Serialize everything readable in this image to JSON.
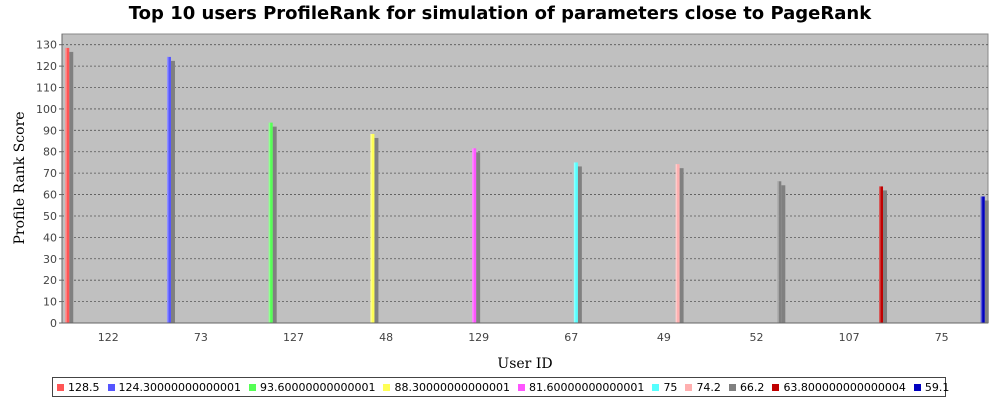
{
  "chart_data": {
    "type": "bar",
    "title": "Top 10 users ProfileRank for simulation of parameters close to PageRank",
    "xlabel": "User ID",
    "ylabel": "Profile Rank Score",
    "ylim": [
      0,
      135
    ],
    "yticks": [
      0,
      10,
      20,
      30,
      40,
      50,
      60,
      70,
      80,
      90,
      100,
      110,
      120,
      130
    ],
    "grid": true,
    "legend_position": "bottom",
    "categories": [
      "122",
      "73",
      "127",
      "48",
      "129",
      "67",
      "49",
      "52",
      "107",
      "75"
    ],
    "series": [
      {
        "name": "128.5",
        "color": "#ff5555",
        "values": [
          128.5,
          null,
          null,
          null,
          null,
          null,
          null,
          null,
          null,
          null
        ]
      },
      {
        "name": "124.30000000000001",
        "color": "#5555ff",
        "values": [
          null,
          124.3,
          null,
          null,
          null,
          null,
          null,
          null,
          null,
          null
        ]
      },
      {
        "name": "93.60000000000001",
        "color": "#55ff55",
        "values": [
          null,
          null,
          93.6,
          null,
          null,
          null,
          null,
          null,
          null,
          null
        ]
      },
      {
        "name": "88.30000000000001",
        "color": "#ffff55",
        "values": [
          null,
          null,
          null,
          88.3,
          null,
          null,
          null,
          null,
          null,
          null
        ]
      },
      {
        "name": "81.60000000000001",
        "color": "#ff55ff",
        "values": [
          null,
          null,
          null,
          null,
          81.6,
          null,
          null,
          null,
          null,
          null
        ]
      },
      {
        "name": "75",
        "color": "#55ffff",
        "values": [
          null,
          null,
          null,
          null,
          null,
          75,
          null,
          null,
          null,
          null
        ]
      },
      {
        "name": "74.2",
        "color": "#ffafaf",
        "values": [
          null,
          null,
          null,
          null,
          null,
          null,
          74.2,
          null,
          null,
          null
        ]
      },
      {
        "name": "66.2",
        "color": "#808080",
        "values": [
          null,
          null,
          null,
          null,
          null,
          null,
          null,
          66.2,
          null,
          null
        ]
      },
      {
        "name": "63.800000000000004",
        "color": "#c00000",
        "values": [
          null,
          null,
          null,
          null,
          null,
          null,
          null,
          null,
          63.8,
          null
        ]
      },
      {
        "name": "59.1",
        "color": "#0000c0",
        "values": [
          null,
          null,
          null,
          null,
          null,
          null,
          null,
          null,
          null,
          59.1
        ]
      }
    ]
  }
}
